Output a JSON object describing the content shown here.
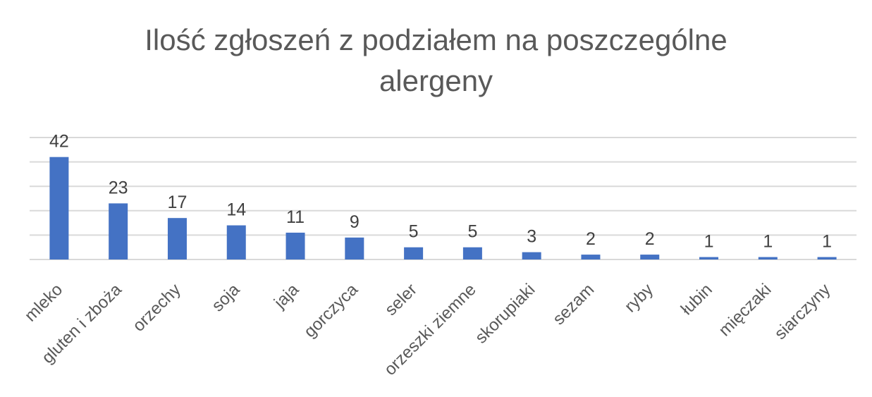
{
  "chart_data": {
    "type": "bar",
    "title": "Ilość zgłoszeń z podziałem na poszczególne alergeny",
    "title_lines": [
      "Ilość zgłoszeń z podziałem na poszczególne",
      "alergeny"
    ],
    "categories": [
      "mleko",
      "gluten i zboża",
      "orzechy",
      "soja",
      "jaja",
      "gorczyca",
      "seler",
      "orzeszki ziemne",
      "skorupiaki",
      "sezam",
      "ryby",
      "łubin",
      "mięczaki",
      "siarczyny"
    ],
    "values": [
      42,
      23,
      17,
      14,
      11,
      9,
      5,
      5,
      3,
      2,
      2,
      1,
      1,
      1
    ],
    "xlabel": "",
    "ylabel": "",
    "ylim": [
      0,
      50
    ],
    "grid": true,
    "y_axis_labels_visible": false,
    "data_labels": true,
    "bar_color": "#4472c4",
    "gridline_color": "#d9d9d9",
    "title_color": "#595959",
    "legend": "none"
  }
}
